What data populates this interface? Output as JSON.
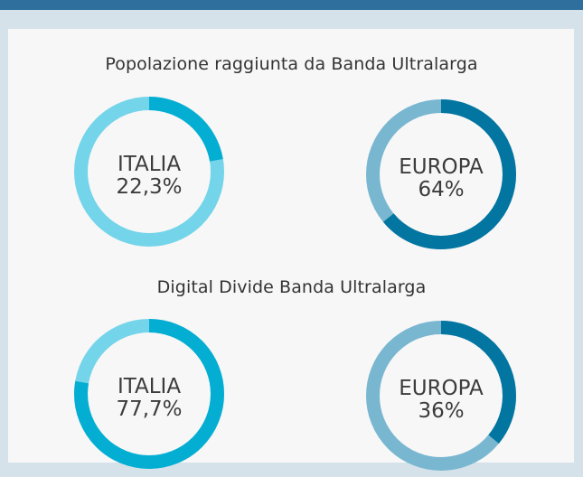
{
  "chart_data": [
    {
      "type": "pie",
      "title": "Popolazione raggiunta da Banda Ultralarga",
      "charts": [
        {
          "label": "ITALIA",
          "value_text": "22,3%",
          "value": 22.3,
          "colors": {
            "arc": "#04aed2",
            "track": "#74d4ea"
          }
        },
        {
          "label": "EUROPA",
          "value_text": "64%",
          "value": 64,
          "colors": {
            "arc": "#0275a1",
            "track": "#79b7d1"
          }
        }
      ]
    },
    {
      "type": "pie",
      "title": "Digital Divide Banda Ultralarga",
      "charts": [
        {
          "label": "ITALIA",
          "value_text": "77,7%",
          "value": 77.7,
          "colors": {
            "arc": "#04aed2",
            "track": "#74d4ea"
          }
        },
        {
          "label": "EUROPA",
          "value_text": "36%",
          "value": 36,
          "colors": {
            "arc": "#0275a1",
            "track": "#79b7d1"
          }
        }
      ]
    }
  ]
}
